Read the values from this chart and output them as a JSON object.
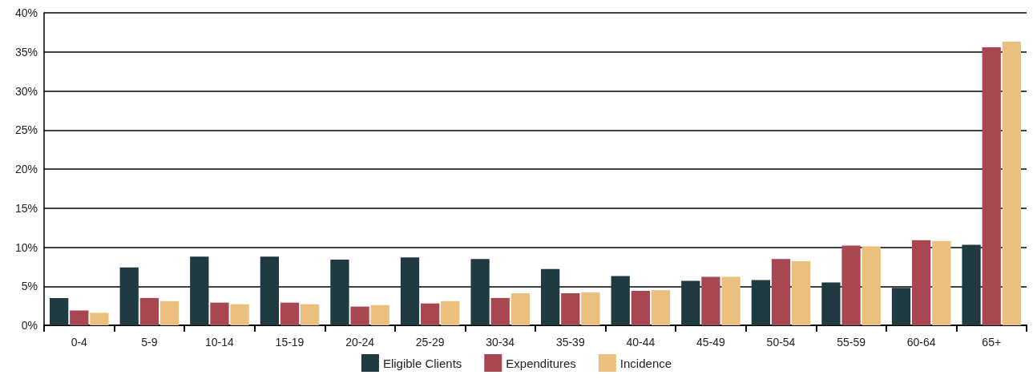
{
  "chart_data": {
    "type": "bar",
    "categories": [
      "0-4",
      "5-9",
      "10-14",
      "15-19",
      "20-24",
      "25-29",
      "30-34",
      "35-39",
      "40-44",
      "45-49",
      "50-54",
      "55-59",
      "60-64",
      "65+"
    ],
    "series": [
      {
        "name": "Eligible Clients",
        "color": "#1f3a40",
        "values": [
          3.5,
          7.4,
          8.8,
          8.8,
          8.4,
          8.7,
          8.5,
          7.2,
          6.3,
          5.7,
          5.8,
          5.5,
          4.8,
          10.3
        ]
      },
      {
        "name": "Expenditures",
        "color": "#a84652",
        "values": [
          1.9,
          3.5,
          2.9,
          2.9,
          2.4,
          2.8,
          3.5,
          4.1,
          4.4,
          6.2,
          8.5,
          10.2,
          10.9,
          35.6
        ]
      },
      {
        "name": "Incidence",
        "color": "#ebbf7d",
        "values": [
          1.6,
          3.1,
          2.7,
          2.7,
          2.6,
          3.1,
          4.1,
          4.2,
          4.5,
          6.2,
          8.2,
          10.1,
          10.8,
          36.3
        ]
      }
    ],
    "ylim": [
      0,
      40
    ],
    "yticks": [
      {
        "value": 0,
        "label": "0%"
      },
      {
        "value": 5,
        "label": "5%"
      },
      {
        "value": 10,
        "label": "10%"
      },
      {
        "value": 15,
        "label": "15%"
      },
      {
        "value": 20,
        "label": "20%"
      },
      {
        "value": 25,
        "label": "25%"
      },
      {
        "value": 30,
        "label": "30%"
      },
      {
        "value": 35,
        "label": "35%"
      },
      {
        "value": 40,
        "label": "40%"
      }
    ],
    "grid": "y",
    "legend": "bottom"
  }
}
